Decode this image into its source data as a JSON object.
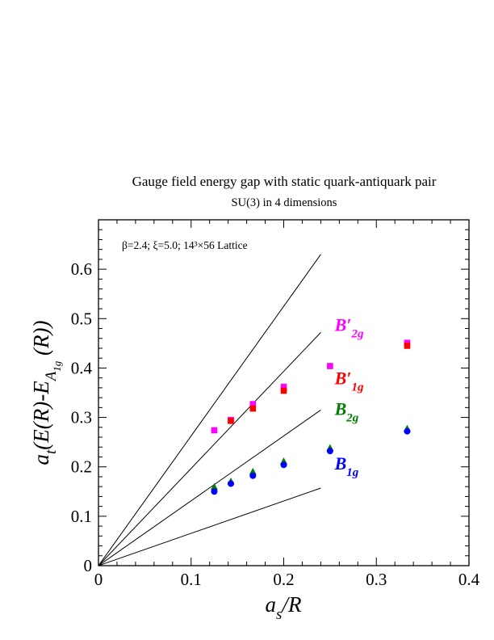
{
  "chart_data": {
    "type": "scatter",
    "title": "Gauge field energy gap with static quark-antiquark pair",
    "subtitle": "SU(3) in 4 dimensions",
    "annotation": "β=2.4;  ξ=5.0;  14³×56 Lattice",
    "xlabel": "a_s/R",
    "ylabel": "a_t(E(R)-E_A1g(R))",
    "xlim": [
      0,
      0.4
    ],
    "ylim": [
      0,
      0.7
    ],
    "x_ticks": [
      "0",
      "0.1",
      "0.2",
      "0.3",
      "0.4"
    ],
    "y_ticks": [
      "0",
      "0.1",
      "0.2",
      "0.3",
      "0.4",
      "0.5",
      "0.6"
    ],
    "grid": false,
    "series": [
      {
        "name": "B'2g",
        "color": "#ff00ff",
        "marker": "square",
        "x": [
          0.125,
          0.1429,
          0.1667,
          0.2,
          0.25,
          0.3333
        ],
        "y": [
          0.274,
          0.295,
          0.327,
          0.362,
          0.404,
          0.451
        ]
      },
      {
        "name": "B'1g",
        "color": "#ff0000",
        "marker": "square",
        "x": [
          0.1429,
          0.1667,
          0.2,
          0.3333
        ],
        "y": [
          0.293,
          0.318,
          0.354,
          0.445
        ]
      },
      {
        "name": "B2g",
        "color": "#008000",
        "marker": "triangle",
        "x": [
          0.125,
          0.1429,
          0.1667,
          0.2,
          0.25,
          0.3333
        ],
        "y": [
          0.159,
          0.17,
          0.19,
          0.211,
          0.238,
          0.277
        ]
      },
      {
        "name": "B1g",
        "color": "#0000ff",
        "marker": "circle",
        "x": [
          0.125,
          0.1429,
          0.1667,
          0.2,
          0.25,
          0.3333
        ],
        "y": [
          0.15,
          0.166,
          0.182,
          0.204,
          0.232,
          0.272
        ]
      }
    ],
    "reference_lines": [
      {
        "x": [
          0,
          0.24
        ],
        "y": [
          0,
          0.63
        ]
      },
      {
        "x": [
          0,
          0.24
        ],
        "y": [
          0,
          0.472
        ]
      },
      {
        "x": [
          0,
          0.24
        ],
        "y": [
          0,
          0.315
        ]
      },
      {
        "x": [
          0,
          0.24
        ],
        "y": [
          0,
          0.157
        ]
      }
    ],
    "series_labels": [
      {
        "base": "B",
        "prime": "′",
        "sub": "2g",
        "color": "#ff00ff",
        "x": 0.255,
        "y": 0.475
      },
      {
        "base": "B",
        "prime": "′",
        "sub": "1g",
        "color": "#ff0000",
        "x": 0.255,
        "y": 0.367
      },
      {
        "base": "B",
        "prime": "",
        "sub": "2g",
        "color": "#008000",
        "x": 0.255,
        "y": 0.305
      },
      {
        "base": "B",
        "prime": "",
        "sub": "1g",
        "color": "#0000ff",
        "x": 0.255,
        "y": 0.195
      }
    ]
  }
}
